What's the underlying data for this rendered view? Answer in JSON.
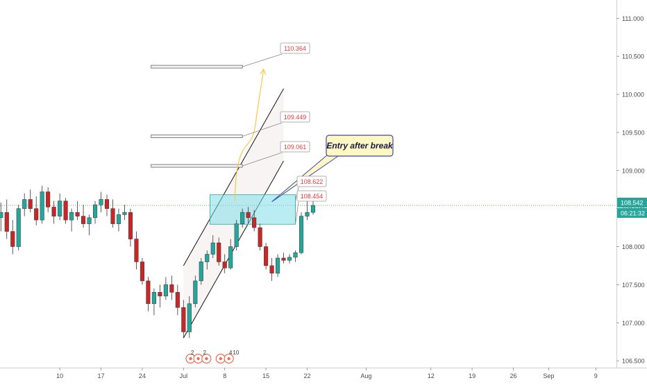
{
  "chart_data": {
    "type": "candlestick",
    "y_ticks": [
      "111.000",
      "110.500",
      "110.000",
      "109.500",
      "109.000",
      "108.500",
      "108.000",
      "107.500",
      "107.000",
      "106.500"
    ],
    "y_tick_values": [
      111.0,
      110.5,
      110.0,
      109.5,
      109.0,
      108.5,
      108.0,
      107.5,
      107.0,
      106.5
    ],
    "x_ticks": [
      "10",
      "17",
      "24",
      "Jul",
      "8",
      "15",
      "22",
      "Aug",
      "12",
      "19",
      "26",
      "Sep",
      "9"
    ],
    "x_tick_days": [
      -20,
      -13,
      -6,
      1,
      8,
      15,
      22,
      32,
      43,
      50,
      57,
      63,
      71
    ],
    "ylim": [
      106.41,
      111.24
    ],
    "xlim": [
      -30.15,
      74.5
    ],
    "price_label": "108.542",
    "countdown_label": "06:21:32",
    "current_price": 108.542,
    "levels": [
      {
        "label": "110.364",
        "value": 110.364
      },
      {
        "label": "109.449",
        "value": 109.449
      },
      {
        "label": "109.061",
        "value": 109.061
      },
      {
        "label": "108.622",
        "value": 108.622
      },
      {
        "label": "108.454",
        "value": 108.454
      }
    ],
    "annotation": "Entry after break",
    "event_badges": [
      "2",
      "2",
      "4",
      "10"
    ],
    "candles": [
      [
        -30,
        108.38,
        108.58,
        108.2,
        108.45
      ],
      [
        -29,
        108.45,
        108.62,
        108.1,
        108.2
      ],
      [
        -28,
        108.2,
        108.35,
        107.9,
        108.0
      ],
      [
        -27,
        108.0,
        108.55,
        107.95,
        108.5
      ],
      [
        -26,
        108.5,
        108.7,
        108.4,
        108.62
      ],
      [
        -25,
        108.62,
        108.75,
        108.45,
        108.5
      ],
      [
        -24,
        108.5,
        108.66,
        108.28,
        108.35
      ],
      [
        -23,
        108.35,
        108.8,
        108.3,
        108.72
      ],
      [
        -22,
        108.72,
        108.78,
        108.45,
        108.52
      ],
      [
        -21,
        108.52,
        108.6,
        108.3,
        108.4
      ],
      [
        -20,
        108.4,
        108.7,
        108.35,
        108.6
      ],
      [
        -19,
        108.6,
        108.64,
        108.3,
        108.35
      ],
      [
        -18,
        108.35,
        108.5,
        108.2,
        108.45
      ],
      [
        -17,
        108.45,
        108.6,
        108.35,
        108.4
      ],
      [
        -16,
        108.4,
        108.55,
        108.25,
        108.3
      ],
      [
        -15,
        108.3,
        108.42,
        108.15,
        108.38
      ],
      [
        -14,
        108.38,
        108.6,
        108.3,
        108.55
      ],
      [
        -13,
        108.55,
        108.72,
        108.45,
        108.62
      ],
      [
        -12,
        108.62,
        108.68,
        108.4,
        108.5
      ],
      [
        -11,
        108.5,
        108.62,
        108.25,
        108.3
      ],
      [
        -10,
        108.3,
        108.5,
        108.2,
        108.42
      ],
      [
        -9,
        108.42,
        108.55,
        108.35,
        108.45
      ],
      [
        -8,
        108.45,
        108.5,
        108.0,
        108.1
      ],
      [
        -7,
        108.1,
        108.2,
        107.7,
        107.8
      ],
      [
        -6,
        107.8,
        107.85,
        107.5,
        107.55
      ],
      [
        -5,
        107.55,
        107.6,
        107.15,
        107.25
      ],
      [
        -4,
        107.25,
        107.45,
        107.1,
        107.4
      ],
      [
        -3,
        107.4,
        107.5,
        107.2,
        107.35
      ],
      [
        -2,
        107.35,
        107.6,
        107.3,
        107.5
      ],
      [
        -1,
        107.5,
        107.62,
        107.3,
        107.4
      ],
      [
        0,
        107.4,
        107.5,
        107.1,
        107.2
      ],
      [
        1,
        107.2,
        107.3,
        106.8,
        106.88
      ],
      [
        2,
        106.88,
        107.35,
        106.8,
        107.25
      ],
      [
        3,
        107.25,
        107.62,
        107.2,
        107.55
      ],
      [
        4,
        107.55,
        107.85,
        107.5,
        107.8
      ],
      [
        5,
        107.8,
        107.95,
        107.7,
        107.9
      ],
      [
        6,
        107.9,
        108.15,
        107.85,
        108.05
      ],
      [
        7,
        108.05,
        108.12,
        107.75,
        107.8
      ],
      [
        8,
        107.8,
        107.9,
        107.65,
        107.72
      ],
      [
        9,
        107.72,
        108.1,
        107.7,
        108.0
      ],
      [
        10,
        108.0,
        108.35,
        107.95,
        108.3
      ],
      [
        11,
        108.3,
        108.5,
        108.25,
        108.45
      ],
      [
        12,
        108.45,
        108.52,
        108.3,
        108.38
      ],
      [
        13,
        108.38,
        108.48,
        108.2,
        108.25
      ],
      [
        14,
        108.25,
        108.3,
        107.95,
        108.0
      ],
      [
        15,
        108.0,
        108.05,
        107.7,
        107.75
      ],
      [
        16,
        107.75,
        107.85,
        107.55,
        107.65
      ],
      [
        17,
        107.65,
        107.9,
        107.6,
        107.85
      ],
      [
        18,
        107.85,
        107.92,
        107.78,
        107.82
      ],
      [
        19,
        107.82,
        107.9,
        107.78,
        107.86
      ],
      [
        20,
        107.86,
        107.95,
        107.8,
        107.92
      ],
      [
        21,
        107.92,
        108.45,
        107.9,
        108.4
      ],
      [
        22,
        108.4,
        108.6,
        108.35,
        108.45
      ],
      [
        23,
        108.45,
        108.6,
        108.42,
        108.542
      ]
    ]
  }
}
